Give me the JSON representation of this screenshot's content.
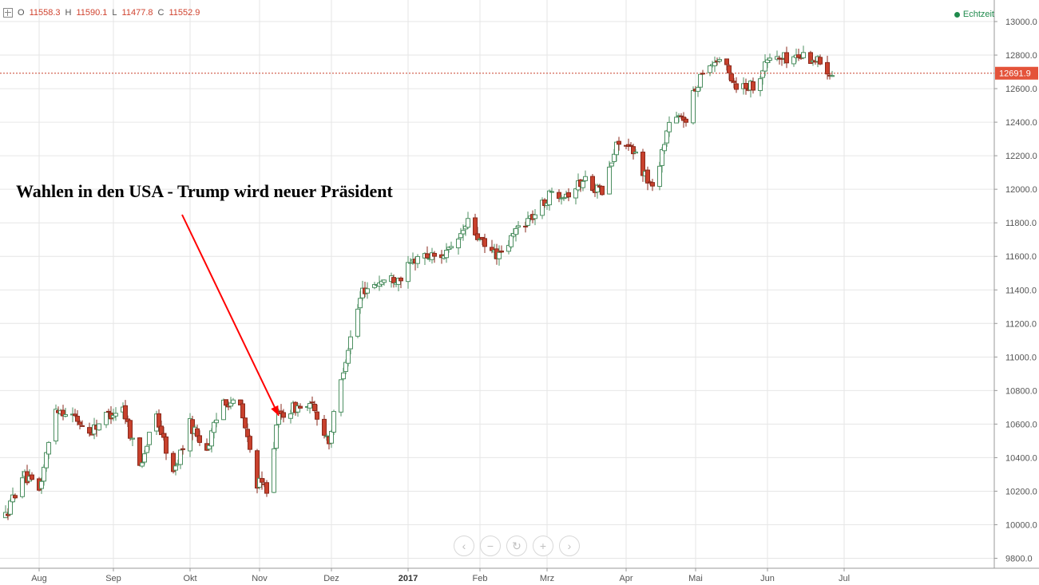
{
  "ohlc": {
    "o_label": "O",
    "o_value": "11558.3",
    "h_label": "H",
    "h_value": "11590.1",
    "l_label": "L",
    "l_value": "11477.8",
    "c_label": "C",
    "c_value": "11552.9"
  },
  "realtime_label": "Echtzeit",
  "annotation_text": "Wahlen in den USA - Trump wird neuer Präsident",
  "nav_buttons": [
    "‹",
    "−",
    "↻",
    "+",
    "›"
  ],
  "colors": {
    "up_body": "#ffffff",
    "up_border": "#4c8f61",
    "down_body": "#c8412d",
    "down_border": "#8a2a1c",
    "grid": "#e6e6e6",
    "arrow": "#ff0000",
    "price_line": "#c8412d",
    "price_tag": "#e4533a"
  },
  "chart_data": {
    "type": "candlestick",
    "title": "",
    "xlabel": "",
    "ylabel": "",
    "ylim": [
      9800,
      13000
    ],
    "y_ticks": [
      "9800.0",
      "10000.0",
      "10200.0",
      "10400.0",
      "10600.0",
      "10800.0",
      "11000.0",
      "11200.0",
      "11400.0",
      "11600.0",
      "11800.0",
      "12000.0",
      "12200.0",
      "12400.0",
      "12600.0",
      "12800.0",
      "13000.0"
    ],
    "x_ticks": [
      "Aug",
      "Sep",
      "Okt",
      "Nov",
      "Dez",
      "2017",
      "Feb",
      "Mrz",
      "Apr",
      "Mai",
      "Jun",
      "Jul"
    ],
    "last_price": 12691.9,
    "last_price_label": "12691.9",
    "arrow_annotation": {
      "target_month": "Nov",
      "target_value": 10650
    },
    "anchors": [
      [
        "2016-07-18",
        10050
      ],
      [
        "2016-07-25",
        10300
      ],
      [
        "2016-08-01",
        10200
      ],
      [
        "2016-08-08",
        10700
      ],
      [
        "2016-08-15",
        10650
      ],
      [
        "2016-08-22",
        10550
      ],
      [
        "2016-08-29",
        10650
      ],
      [
        "2016-09-05",
        10700
      ],
      [
        "2016-09-12",
        10350
      ],
      [
        "2016-09-19",
        10650
      ],
      [
        "2016-09-26",
        10300
      ],
      [
        "2016-10-03",
        10600
      ],
      [
        "2016-10-10",
        10450
      ],
      [
        "2016-10-17",
        10750
      ],
      [
        "2016-10-24",
        10700
      ],
      [
        "2016-10-31",
        10250
      ],
      [
        "2016-11-04",
        10220
      ],
      [
        "2016-11-09",
        10650
      ],
      [
        "2016-11-16",
        10700
      ],
      [
        "2016-11-23",
        10700
      ],
      [
        "2016-11-30",
        10500
      ],
      [
        "2016-12-07",
        11000
      ],
      [
        "2016-12-14",
        11400
      ],
      [
        "2016-12-21",
        11450
      ],
      [
        "2016-12-30",
        11480
      ],
      [
        "2017-01-06",
        11600
      ],
      [
        "2017-01-13",
        11600
      ],
      [
        "2017-01-20",
        11630
      ],
      [
        "2017-01-27",
        11800
      ],
      [
        "2017-02-03",
        11650
      ],
      [
        "2017-02-10",
        11600
      ],
      [
        "2017-02-17",
        11780
      ],
      [
        "2017-02-24",
        11850
      ],
      [
        "2017-03-03",
        11980
      ],
      [
        "2017-03-10",
        11980
      ],
      [
        "2017-03-17",
        12060
      ],
      [
        "2017-03-24",
        11980
      ],
      [
        "2017-03-31",
        12300
      ],
      [
        "2017-04-07",
        12200
      ],
      [
        "2017-04-14",
        12000
      ],
      [
        "2017-04-21",
        12400
      ],
      [
        "2017-04-28",
        12430
      ],
      [
        "2017-05-05",
        12720
      ],
      [
        "2017-05-12",
        12780
      ],
      [
        "2017-05-19",
        12620
      ],
      [
        "2017-05-26",
        12620
      ],
      [
        "2017-06-02",
        12790
      ],
      [
        "2017-06-09",
        12780
      ],
      [
        "2017-06-16",
        12800
      ],
      [
        "2017-06-23",
        12760
      ],
      [
        "2017-06-28",
        12692
      ]
    ]
  }
}
